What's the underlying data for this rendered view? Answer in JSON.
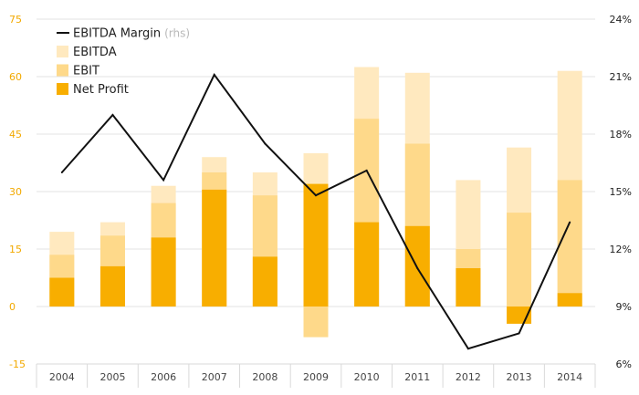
{
  "chart_data": {
    "type": "bar",
    "categories": [
      "2004",
      "2005",
      "2006",
      "2007",
      "2008",
      "2009",
      "2010",
      "2011",
      "2012",
      "2013",
      "2014"
    ],
    "series": [
      {
        "name": "EBITDA",
        "kind": "bar",
        "axis": "left",
        "color": "#ffe9bf",
        "values": [
          19.5,
          22,
          31.5,
          39,
          35,
          40,
          62.5,
          61,
          33,
          41.5,
          61.5
        ]
      },
      {
        "name": "EBIT",
        "kind": "bar",
        "axis": "left",
        "color": "#fed98a",
        "values": [
          13.5,
          18.5,
          27,
          35,
          29,
          -8,
          49,
          42.5,
          15,
          24.5,
          33
        ]
      },
      {
        "name": "Net Profit",
        "kind": "bar",
        "axis": "left",
        "color": "#f8ae00",
        "values": [
          7.5,
          10.5,
          18,
          30.5,
          13,
          32,
          22,
          21,
          10,
          -4.5,
          3.5
        ]
      },
      {
        "name": "EBITDA Margin",
        "kind": "line",
        "axis": "right",
        "color": "#111111",
        "values": [
          16.0,
          19.0,
          15.6,
          21.1,
          17.5,
          14.8,
          16.1,
          11.0,
          6.8,
          7.6,
          13.4
        ]
      }
    ],
    "legend": [
      {
        "label": "EBITDA Margin",
        "note": "(rhs)",
        "kind": "line",
        "color": "#111111"
      },
      {
        "label": "EBITDA",
        "kind": "box",
        "color": "#ffe9bf"
      },
      {
        "label": "EBIT",
        "kind": "box",
        "color": "#fed98a"
      },
      {
        "label": "Net Profit",
        "kind": "box",
        "color": "#f8ae00"
      }
    ],
    "y_left": {
      "ticks": [
        "75",
        "60",
        "45",
        "30",
        "15",
        "0",
        "-15"
      ],
      "ylim": [
        -15,
        75
      ]
    },
    "y_right": {
      "ticks": [
        "24%",
        "21%",
        "18%",
        "15%",
        "12%",
        "9%",
        "6%"
      ],
      "ylim": [
        6,
        24
      ]
    },
    "legend_position": "top-left",
    "grid": true,
    "xlabel": "",
    "ylabel": "",
    "title": ""
  }
}
